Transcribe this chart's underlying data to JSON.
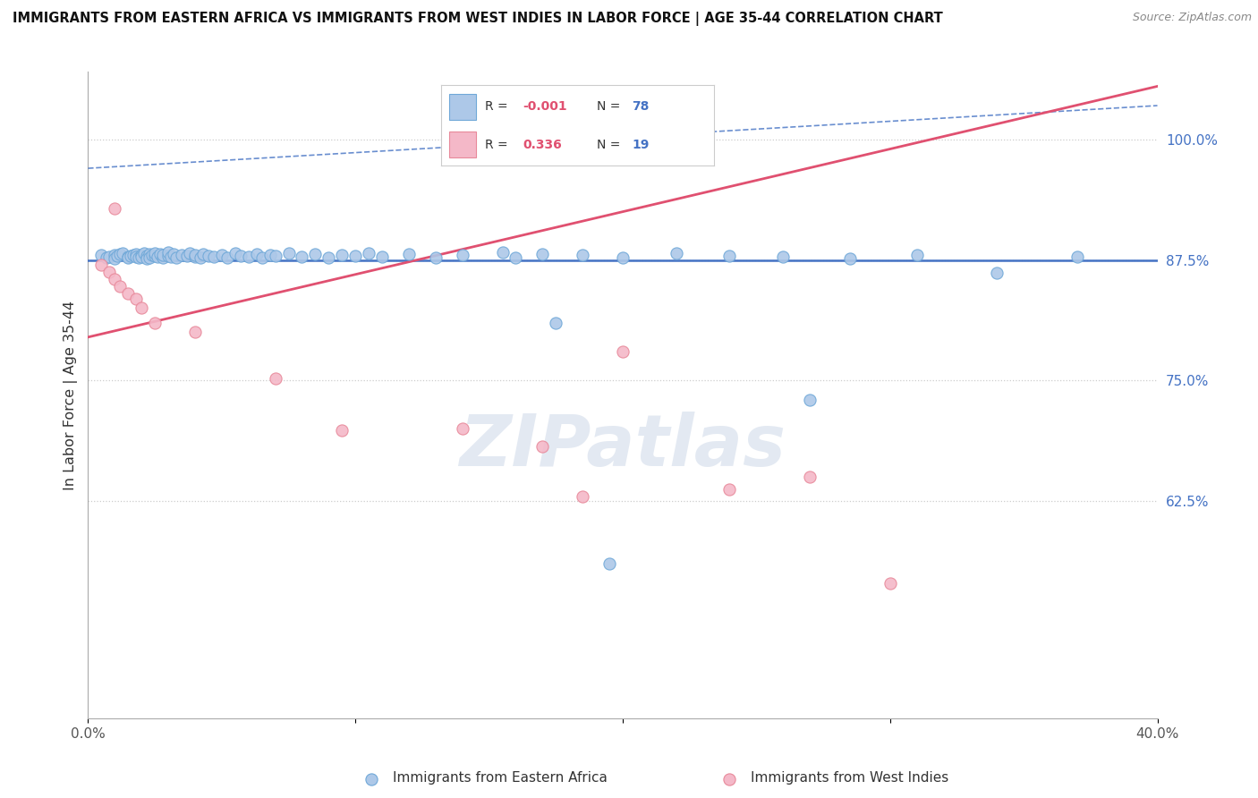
{
  "title": "IMMIGRANTS FROM EASTERN AFRICA VS IMMIGRANTS FROM WEST INDIES IN LABOR FORCE | AGE 35-44 CORRELATION CHART",
  "source": "Source: ZipAtlas.com",
  "ylabel": "In Labor Force | Age 35-44",
  "watermark": "ZIPatlas",
  "blue_R": "-0.001",
  "blue_N": "78",
  "pink_R": "0.336",
  "pink_N": "19",
  "blue_label": "Immigrants from Eastern Africa",
  "pink_label": "Immigrants from West Indies",
  "blue_color": "#adc8e8",
  "blue_edge_color": "#6fa8d8",
  "blue_line_color": "#4472c4",
  "pink_color": "#f4b8c8",
  "pink_edge_color": "#e8899a",
  "pink_line_color": "#e05070",
  "xmin": 0.0,
  "xmax": 0.4,
  "ymin": 0.4,
  "ymax": 1.07,
  "yticks": [
    0.625,
    0.75,
    0.875,
    1.0
  ],
  "ytick_labels": [
    "62.5%",
    "75.0%",
    "87.5%",
    "100.0%"
  ],
  "xticks": [
    0.0,
    0.1,
    0.2,
    0.3,
    0.4
  ],
  "xtick_labels": [
    "0.0%",
    "",
    "",
    "",
    "40.0%"
  ],
  "blue_hline_y": 0.875,
  "blue_trend_x": [
    0.0,
    0.4
  ],
  "blue_trend_y": [
    0.97,
    1.035
  ],
  "pink_trend_x": [
    0.0,
    0.4
  ],
  "pink_trend_y": [
    0.795,
    1.055
  ],
  "blue_x": [
    0.005,
    0.007,
    0.008,
    0.01,
    0.01,
    0.011,
    0.012,
    0.013,
    0.015,
    0.015,
    0.016,
    0.017,
    0.018,
    0.018,
    0.019,
    0.02,
    0.02,
    0.021,
    0.022,
    0.022,
    0.023,
    0.023,
    0.024,
    0.025,
    0.025,
    0.026,
    0.027,
    0.028,
    0.028,
    0.03,
    0.03,
    0.031,
    0.032,
    0.033,
    0.035,
    0.037,
    0.038,
    0.04,
    0.04,
    0.042,
    0.043,
    0.045,
    0.047,
    0.05,
    0.052,
    0.055,
    0.057,
    0.06,
    0.063,
    0.065,
    0.068,
    0.07,
    0.075,
    0.08,
    0.085,
    0.09,
    0.095,
    0.1,
    0.105,
    0.11,
    0.12,
    0.13,
    0.14,
    0.155,
    0.16,
    0.17,
    0.185,
    0.2,
    0.22,
    0.24,
    0.26,
    0.175,
    0.285,
    0.31,
    0.37,
    0.195,
    0.27,
    0.34
  ],
  "blue_y": [
    0.875,
    0.875,
    0.875,
    0.876,
    0.874,
    0.875,
    0.875,
    0.876,
    0.875,
    0.874,
    0.876,
    0.875,
    0.876,
    0.874,
    0.875,
    0.875,
    0.876,
    0.875,
    0.875,
    0.874,
    0.876,
    0.875,
    0.875,
    0.875,
    0.876,
    0.875,
    0.876,
    0.875,
    0.875,
    0.875,
    0.876,
    0.875,
    0.876,
    0.875,
    0.875,
    0.875,
    0.876,
    0.875,
    0.876,
    0.875,
    0.876,
    0.875,
    0.875,
    0.876,
    0.875,
    0.875,
    0.876,
    0.875,
    0.876,
    0.875,
    0.875,
    0.876,
    0.875,
    0.875,
    0.876,
    0.875,
    0.875,
    0.876,
    0.875,
    0.875,
    0.876,
    0.875,
    0.875,
    0.876,
    0.875,
    0.876,
    0.875,
    0.875,
    0.876,
    0.875,
    0.875,
    0.81,
    0.875,
    0.875,
    0.875,
    0.56,
    0.73,
    0.86
  ],
  "blue_y_scatter": [
    0.88,
    0.877,
    0.878,
    0.88,
    0.876,
    0.879,
    0.881,
    0.882,
    0.878,
    0.877,
    0.879,
    0.88,
    0.881,
    0.878,
    0.877,
    0.88,
    0.878,
    0.882,
    0.879,
    0.876,
    0.881,
    0.877,
    0.88,
    0.879,
    0.882,
    0.878,
    0.881,
    0.877,
    0.88,
    0.879,
    0.883,
    0.878,
    0.881,
    0.877,
    0.88,
    0.879,
    0.882,
    0.878,
    0.88,
    0.877,
    0.881,
    0.879,
    0.878,
    0.88,
    0.877,
    0.882,
    0.879,
    0.878,
    0.881,
    0.877,
    0.88,
    0.879,
    0.882,
    0.878,
    0.881,
    0.877,
    0.88,
    0.879,
    0.882,
    0.878,
    0.881,
    0.877,
    0.88,
    0.883,
    0.877,
    0.881,
    0.88,
    0.877,
    0.882,
    0.879,
    0.878,
    0.81,
    0.876,
    0.88,
    0.878,
    0.56,
    0.73,
    0.862
  ],
  "pink_x": [
    0.005,
    0.008,
    0.01,
    0.012,
    0.015,
    0.018,
    0.02,
    0.025,
    0.04,
    0.07,
    0.095,
    0.14,
    0.17,
    0.2,
    0.24,
    0.27,
    0.01,
    0.185,
    0.3
  ],
  "pink_y": [
    0.87,
    0.863,
    0.855,
    0.848,
    0.84,
    0.835,
    0.825,
    0.81,
    0.8,
    0.752,
    0.698,
    0.7,
    0.682,
    0.78,
    0.637,
    0.65,
    0.928,
    0.63,
    0.54
  ]
}
